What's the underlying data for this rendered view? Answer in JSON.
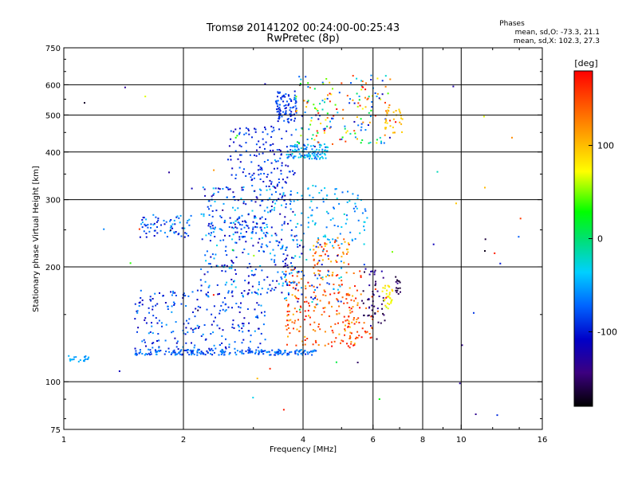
{
  "chart_data": {
    "type": "scatter",
    "title_line1": "Tromsø 20141202 00:24:00-00:25:43",
    "title_line2": "RwPretec (8p)",
    "phases_header": "Phases",
    "phases_line1": "mean, sd,O: -73.3, 21.1",
    "phases_line2": "mean, sd,X: 102.3, 27.3",
    "xlabel": "Frequency [MHz]",
    "ylabel": "Stationary phase Virtual Height [km]",
    "x_scale": "log",
    "y_scale": "log",
    "xlim": [
      1,
      16
    ],
    "ylim": [
      75,
      750
    ],
    "x_ticks": [
      {
        "value": 1,
        "label": "1"
      },
      {
        "value": 2,
        "label": "2"
      },
      {
        "value": 4,
        "label": "4"
      },
      {
        "value": 6,
        "label": "6"
      },
      {
        "value": 8,
        "label": "8"
      },
      {
        "value": 10,
        "label": "10"
      },
      {
        "value": 16,
        "label": "16"
      }
    ],
    "y_ticks": [
      {
        "value": 75,
        "label": "75"
      },
      {
        "value": 100,
        "label": "100"
      },
      {
        "value": 200,
        "label": "200"
      },
      {
        "value": 300,
        "label": "300"
      },
      {
        "value": 400,
        "label": "400"
      },
      {
        "value": 500,
        "label": "500"
      },
      {
        "value": 600,
        "label": "600"
      },
      {
        "value": 750,
        "label": "750"
      }
    ],
    "grid_x": [
      2,
      4,
      6,
      8,
      10
    ],
    "grid_y": [
      100,
      200,
      300,
      400,
      500,
      600
    ],
    "grid": true,
    "colorbar": {
      "label": "[deg]",
      "range": [
        -180,
        180
      ],
      "ticks": [
        {
          "value": 100,
          "label": "100"
        },
        {
          "value": 0,
          "label": "0"
        },
        {
          "value": -100,
          "label": "-100"
        }
      ]
    },
    "clusters": [
      {
        "x": [
          1.0,
          1.15
        ],
        "y": [
          113,
          118
        ],
        "phase": [
          -60,
          -40
        ],
        "n": 20
      },
      {
        "x": [
          1.5,
          4.3
        ],
        "y": [
          118,
          122
        ],
        "phase": [
          -100,
          -50
        ],
        "n": 220
      },
      {
        "x": [
          1.55,
          2.1
        ],
        "y": [
          240,
          275
        ],
        "phase": [
          -110,
          -40
        ],
        "n": 70
      },
      {
        "x": [
          2.3,
          3.2
        ],
        "y": [
          240,
          275
        ],
        "phase": [
          -110,
          -40
        ],
        "n": 60
      },
      {
        "x": [
          1.5,
          3.2
        ],
        "y": [
          122,
          175
        ],
        "phase": [
          -120,
          -50
        ],
        "n": 230
      },
      {
        "x": [
          2.2,
          3.8
        ],
        "y": [
          170,
          330
        ],
        "phase": [
          -130,
          -30
        ],
        "n": 320
      },
      {
        "x": [
          2.6,
          3.8
        ],
        "y": [
          330,
          470
        ],
        "phase": [
          -120,
          -70
        ],
        "n": 130
      },
      {
        "x": [
          3.4,
          3.85
        ],
        "y": [
          480,
          580
        ],
        "phase": [
          -110,
          -70
        ],
        "n": 90
      },
      {
        "x": [
          3.6,
          4.6
        ],
        "y": [
          385,
          420
        ],
        "phase": [
          -80,
          -20
        ],
        "n": 110
      },
      {
        "x": [
          3.8,
          6.6
        ],
        "y": [
          420,
          640
        ],
        "phase": [
          -120,
          180
        ],
        "n": 180
      },
      {
        "x": [
          3.8,
          5.8
        ],
        "y": [
          230,
          330
        ],
        "phase": [
          -80,
          -20
        ],
        "n": 100
      },
      {
        "x": [
          3.6,
          5.6
        ],
        "y": [
          123,
          200
        ],
        "phase": [
          100,
          180
        ],
        "n": 210
      },
      {
        "x": [
          4.2,
          5.2
        ],
        "y": [
          200,
          240
        ],
        "phase": [
          90,
          170
        ],
        "n": 50
      },
      {
        "x": [
          3.5,
          5.0
        ],
        "y": [
          160,
          230
        ],
        "phase": [
          -130,
          -20
        ],
        "n": 80
      },
      {
        "x": [
          5.6,
          6.4
        ],
        "y": [
          140,
          200
        ],
        "phase": [
          -170,
          -120
        ],
        "n": 50
      },
      {
        "x": [
          6.3,
          6.7
        ],
        "y": [
          155,
          180
        ],
        "phase": [
          60,
          90
        ],
        "n": 30
      },
      {
        "x": [
          6.8,
          7.0
        ],
        "y": [
          170,
          190
        ],
        "phase": [
          -170,
          -150
        ],
        "n": 14
      },
      {
        "x": [
          6.4,
          7.1
        ],
        "y": [
          450,
          520
        ],
        "phase": [
          90,
          110
        ],
        "n": 30
      },
      {
        "x": [
          5.0,
          6.0
        ],
        "y": [
          130,
          170
        ],
        "phase": [
          130,
          170
        ],
        "n": 35
      },
      {
        "x": [
          1.05,
          14.5
        ],
        "y": [
          80,
          650
        ],
        "phase": [
          -180,
          180
        ],
        "n": 60
      }
    ]
  }
}
